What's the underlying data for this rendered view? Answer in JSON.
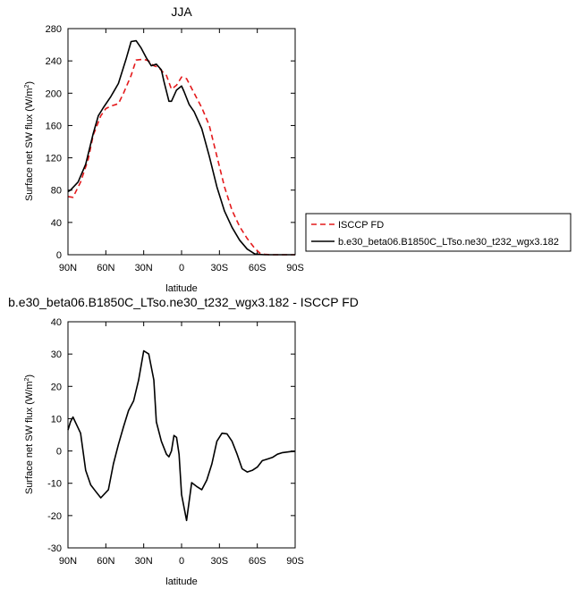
{
  "colors": {
    "obs": "#e41a1c",
    "model": "#000000"
  },
  "chart_data": [
    {
      "type": "line",
      "title": "JJA",
      "xlabel": "latitude",
      "ylabel": "Surface net SW flux (W/m",
      "ylabel_sup": "2",
      "ylabel_end": ")",
      "xlim": [
        90,
        -90
      ],
      "ylim": [
        0,
        280
      ],
      "xticks": [
        90,
        60,
        30,
        0,
        -30,
        -60,
        -90
      ],
      "xtick_labels": [
        "90N",
        "60N",
        "30N",
        "0",
        "30S",
        "60S",
        "90S"
      ],
      "yticks": [
        0,
        40,
        80,
        120,
        160,
        200,
        240,
        280
      ],
      "ytick_labels": [
        "0",
        "40",
        "80",
        "120",
        "160",
        "200",
        "240",
        "280"
      ],
      "legend": {
        "placement": "right",
        "entries": [
          "ISCCP FD",
          "b.e30_beta06.B1850C_LTso.ne30_t232_wgx3.182"
        ]
      },
      "series": [
        {
          "name": "ISCCP FD",
          "style": "dashed",
          "color": "#e41a1c",
          "x": [
            90,
            86,
            80,
            74,
            70,
            64,
            60,
            56,
            50,
            46,
            40,
            36,
            30,
            26,
            22,
            18,
            16,
            12,
            8,
            4,
            0,
            -4,
            -10,
            -16,
            -22,
            -28,
            -34,
            -40,
            -46,
            -52,
            -58,
            -62,
            -66,
            -70,
            -76,
            -82,
            -90
          ],
          "y": [
            72,
            71,
            90,
            118,
            148,
            172,
            181,
            184,
            187,
            200,
            222,
            241,
            242,
            240,
            234,
            232,
            228,
            222,
            205,
            210,
            220,
            218,
            200,
            182,
            160,
            122,
            84,
            55,
            35,
            20,
            8,
            2,
            0.5,
            0,
            0,
            0,
            0
          ]
        },
        {
          "name": "b.e30_beta06.B1850C_LTso.ne30_t232_wgx3.182",
          "style": "solid",
          "color": "#000000",
          "x": [
            90,
            88,
            82,
            76,
            70,
            66,
            62,
            56,
            50,
            44,
            40,
            36,
            32,
            28,
            24,
            20,
            16,
            14,
            10,
            8,
            4,
            0,
            -2,
            -6,
            -10,
            -16,
            -22,
            -28,
            -34,
            -40,
            -46,
            -52,
            -58,
            -62,
            -66,
            -70,
            -76,
            -82,
            -90
          ],
          "y": [
            78,
            80,
            90,
            112,
            150,
            172,
            182,
            196,
            212,
            242,
            264,
            265,
            256,
            244,
            234,
            236,
            229,
            215,
            190,
            190,
            204,
            209,
            202,
            186,
            177,
            156,
            122,
            84,
            54,
            34,
            18,
            7,
            1,
            0.3,
            0,
            0,
            0,
            0,
            0
          ]
        }
      ]
    },
    {
      "type": "line",
      "title": "b.e30_beta06.B1850C_LTso.ne30_t232_wgx3.182 - ISCCP FD",
      "xlabel": "latitude",
      "ylabel": "Surface net SW flux (W/m",
      "ylabel_sup": "2",
      "ylabel_end": ")",
      "xlim": [
        90,
        -90
      ],
      "ylim": [
        -30,
        40
      ],
      "xticks": [
        90,
        60,
        30,
        0,
        -30,
        -60,
        -90
      ],
      "xtick_labels": [
        "90N",
        "60N",
        "30N",
        "0",
        "30S",
        "60S",
        "90S"
      ],
      "yticks": [
        -30,
        -20,
        -10,
        0,
        10,
        20,
        30,
        40
      ],
      "ytick_labels": [
        "-30",
        "-20",
        "-10",
        "0",
        "10",
        "20",
        "30",
        "40"
      ],
      "series": [
        {
          "name": "",
          "style": "solid",
          "color": "#000000",
          "x": [
            90,
            88,
            86,
            80,
            76,
            72,
            68,
            64,
            58,
            54,
            50,
            46,
            42,
            38,
            34,
            30,
            26,
            22,
            20,
            16,
            12,
            10,
            8,
            6,
            4,
            2,
            0,
            -4,
            -8,
            -12,
            -16,
            -20,
            -24,
            -28,
            -32,
            -36,
            -40,
            -44,
            -48,
            -52,
            -56,
            -60,
            -64,
            -68,
            -72,
            -76,
            -80,
            -86,
            -90
          ],
          "y": [
            6.5,
            9,
            10.5,
            5.5,
            -6,
            -10.5,
            -12.5,
            -14.5,
            -12,
            -4,
            2,
            7.5,
            12.5,
            15.5,
            22,
            31,
            30,
            22,
            9,
            3,
            -1,
            -1.8,
            0,
            4.8,
            4.2,
            -1,
            -13.5,
            -21.5,
            -9.8,
            -11,
            -12,
            -9,
            -4,
            3,
            5.5,
            5.3,
            3,
            -1,
            -5.5,
            -6.5,
            -6,
            -5,
            -3,
            -2.5,
            -2,
            -1,
            -0.5,
            -0.2,
            -0.1
          ]
        }
      ]
    }
  ]
}
